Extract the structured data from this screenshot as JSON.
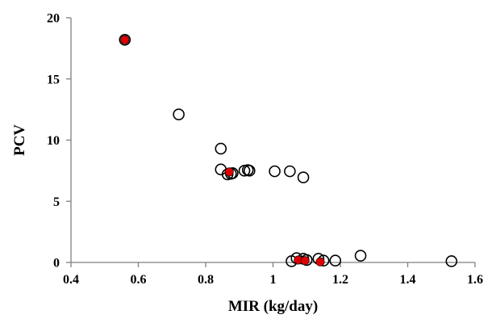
{
  "chart_data": {
    "type": "scatter",
    "title": "",
    "xlabel": "MIR (kg/day)",
    "ylabel": "PCV",
    "xlim": [
      0.4,
      1.6
    ],
    "ylim": [
      0,
      20
    ],
    "x_ticks": [
      0.4,
      0.6,
      0.8,
      1.0,
      1.2,
      1.4,
      1.6
    ],
    "x_tick_labels": [
      "0.4",
      "0.6",
      "0.8",
      "1",
      "1.2",
      "1.4",
      "1.6"
    ],
    "y_ticks": [
      0,
      5,
      10,
      15,
      20
    ],
    "y_tick_labels": [
      "0",
      "5",
      "10",
      "15",
      "20"
    ],
    "grid": false,
    "legend": false,
    "series": [
      {
        "marker": "open-circle",
        "color": "#000000",
        "points": [
          {
            "x": 0.56,
            "y": 18.2
          },
          {
            "x": 0.72,
            "y": 12.1
          },
          {
            "x": 0.845,
            "y": 9.3
          },
          {
            "x": 0.845,
            "y": 7.6
          },
          {
            "x": 0.865,
            "y": 7.2
          },
          {
            "x": 0.875,
            "y": 7.25
          },
          {
            "x": 0.88,
            "y": 7.3
          },
          {
            "x": 0.915,
            "y": 7.5
          },
          {
            "x": 0.925,
            "y": 7.55
          },
          {
            "x": 0.93,
            "y": 7.5
          },
          {
            "x": 1.005,
            "y": 7.45
          },
          {
            "x": 1.05,
            "y": 7.45
          },
          {
            "x": 1.09,
            "y": 6.95
          },
          {
            "x": 1.055,
            "y": 0.1
          },
          {
            "x": 1.07,
            "y": 0.35
          },
          {
            "x": 1.09,
            "y": 0.3
          },
          {
            "x": 1.1,
            "y": 0.2
          },
          {
            "x": 1.135,
            "y": 0.3
          },
          {
            "x": 1.15,
            "y": 0.15
          },
          {
            "x": 1.185,
            "y": 0.15
          },
          {
            "x": 1.26,
            "y": 0.55
          },
          {
            "x": 1.53,
            "y": 0.1
          }
        ]
      },
      {
        "marker": "filled-circle",
        "color": "#e00000",
        "points": [
          {
            "x": 0.56,
            "y": 18.2
          },
          {
            "x": 0.87,
            "y": 7.4
          },
          {
            "x": 1.075,
            "y": 0.2
          },
          {
            "x": 1.095,
            "y": 0.15
          },
          {
            "x": 1.14,
            "y": 0.05
          }
        ]
      }
    ]
  }
}
